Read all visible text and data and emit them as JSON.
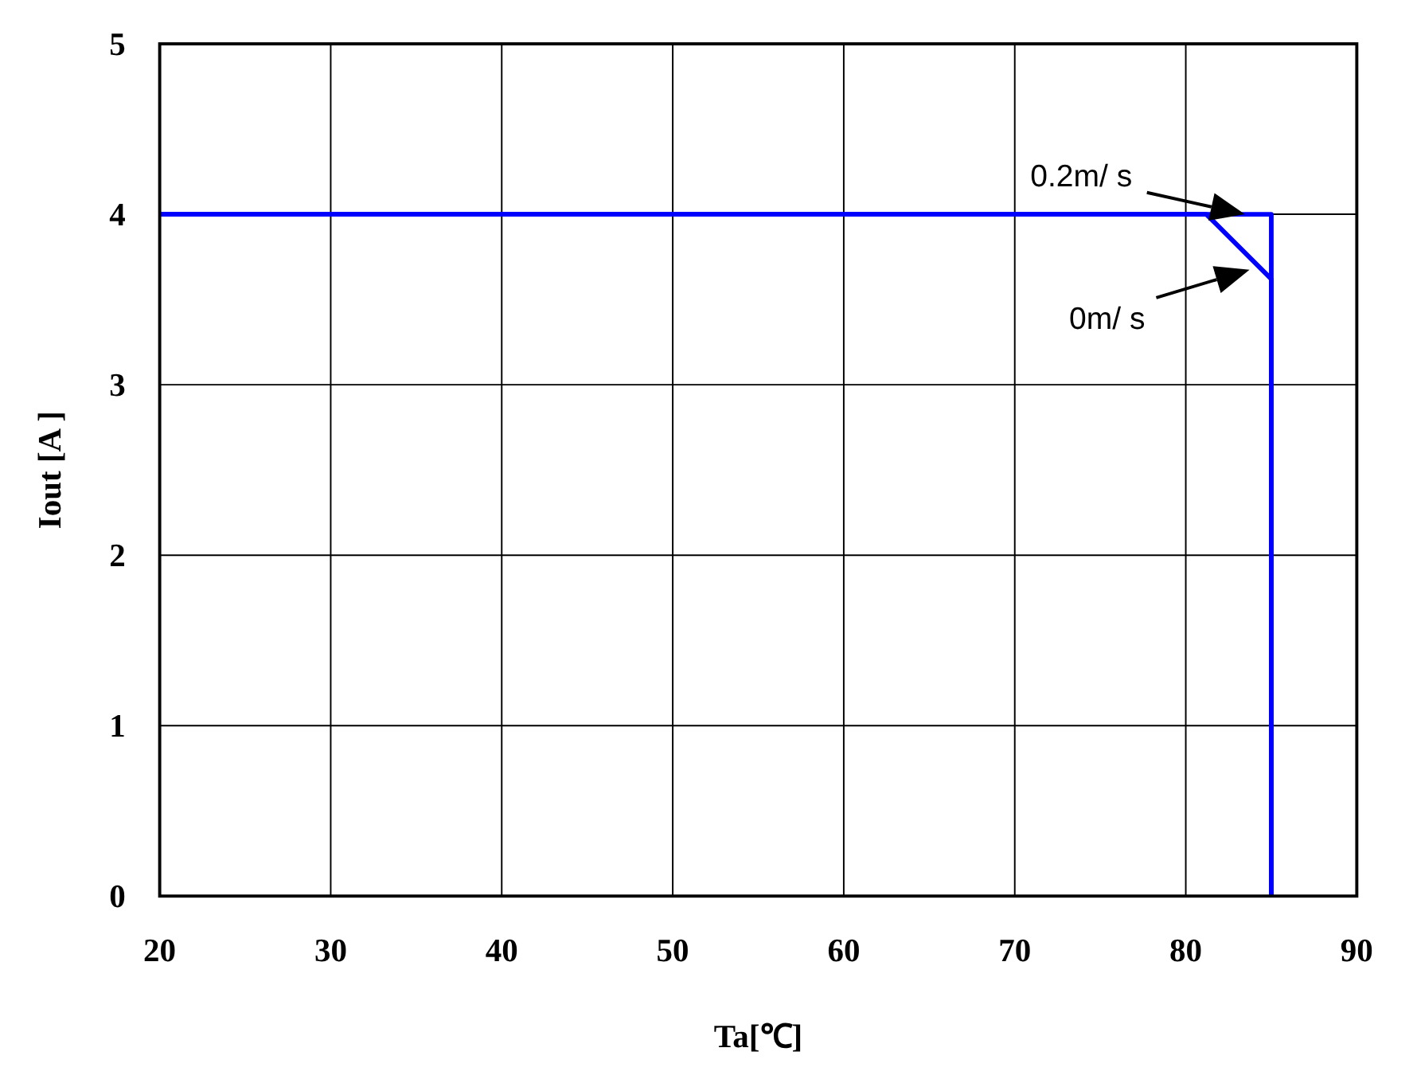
{
  "chart_data": {
    "type": "line",
    "xlabel": "Ta[℃]",
    "ylabel": "Iout [A ]",
    "xlim": [
      20,
      90
    ],
    "ylim": [
      0,
      5
    ],
    "xticks": [
      20,
      30,
      40,
      50,
      60,
      70,
      80,
      90
    ],
    "yticks": [
      0,
      1,
      2,
      3,
      4,
      5
    ],
    "grid": true,
    "line_style": "solid",
    "series": [
      {
        "name": "0.2m/ s",
        "color": "#0000ff",
        "x": [
          20,
          85,
          85
        ],
        "values": [
          4,
          4,
          0
        ]
      },
      {
        "name": "0m/ s",
        "color": "#0000ff",
        "x": [
          20,
          81.2,
          85,
          85
        ],
        "values": [
          4,
          4,
          3.62,
          0
        ]
      }
    ]
  }
}
